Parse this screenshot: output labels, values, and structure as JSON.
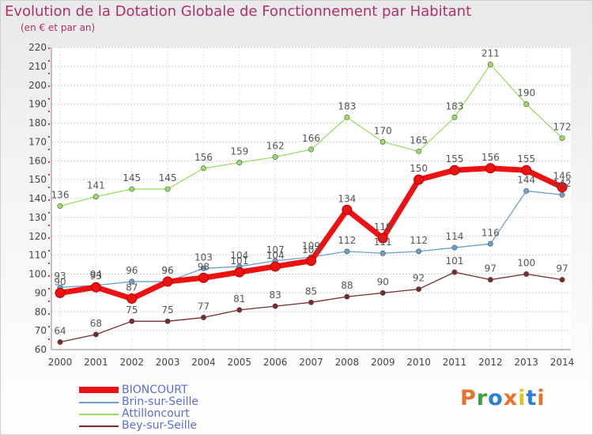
{
  "header": {
    "title": "Evolution de la Dotation Globale de Fonctionnement par Habitant",
    "subtitle": "(en € et par an)"
  },
  "logo": {
    "text": "Proxiti",
    "colors": [
      "#e8722a",
      "#3aa23a",
      "#2c7fd6",
      "#e8722a",
      "#e2c12a",
      "#2c7fd6",
      "#e8722a"
    ]
  },
  "chart_data": {
    "type": "line",
    "title": "Evolution de la Dotation Globale de Fonctionnement par Habitant",
    "subtitle": "(en € et par an)",
    "xlabel": "",
    "ylabel": "",
    "ylim": [
      60,
      220
    ],
    "yticks": [
      60,
      70,
      80,
      90,
      100,
      110,
      120,
      130,
      140,
      150,
      160,
      170,
      180,
      190,
      200,
      210,
      220
    ],
    "x": [
      "2000",
      "2001",
      "2002",
      "2003",
      "2004",
      "2005",
      "2006",
      "2007",
      "2008",
      "2009",
      "2010",
      "2011",
      "2012",
      "2013",
      "2014"
    ],
    "grid": "horizontal",
    "legend_position": "bottom-left",
    "series": [
      {
        "name": "BIONCOURT",
        "color": "#ee1111",
        "style": "thick",
        "values": [
          90,
          93,
          87,
          96,
          98,
          101,
          104,
          107,
          134,
          119,
          150,
          155,
          156,
          155,
          146
        ]
      },
      {
        "name": "Brin-sur-Seille",
        "color": "#6a9fd0",
        "style": "thin",
        "values": [
          93,
          94,
          96,
          96,
          103,
          104,
          107,
          109,
          112,
          111,
          112,
          114,
          116,
          144,
          142
        ]
      },
      {
        "name": "Attilloncourt",
        "color": "#99dd66",
        "style": "thin",
        "values": [
          136,
          141,
          145,
          145,
          156,
          159,
          162,
          166,
          183,
          170,
          165,
          183,
          211,
          190,
          172
        ]
      },
      {
        "name": "Bey-sur-Seille",
        "color": "#7a2a2a",
        "style": "thin",
        "values": [
          64,
          68,
          75,
          75,
          77,
          81,
          83,
          85,
          88,
          90,
          92,
          101,
          97,
          100,
          97
        ]
      }
    ]
  }
}
